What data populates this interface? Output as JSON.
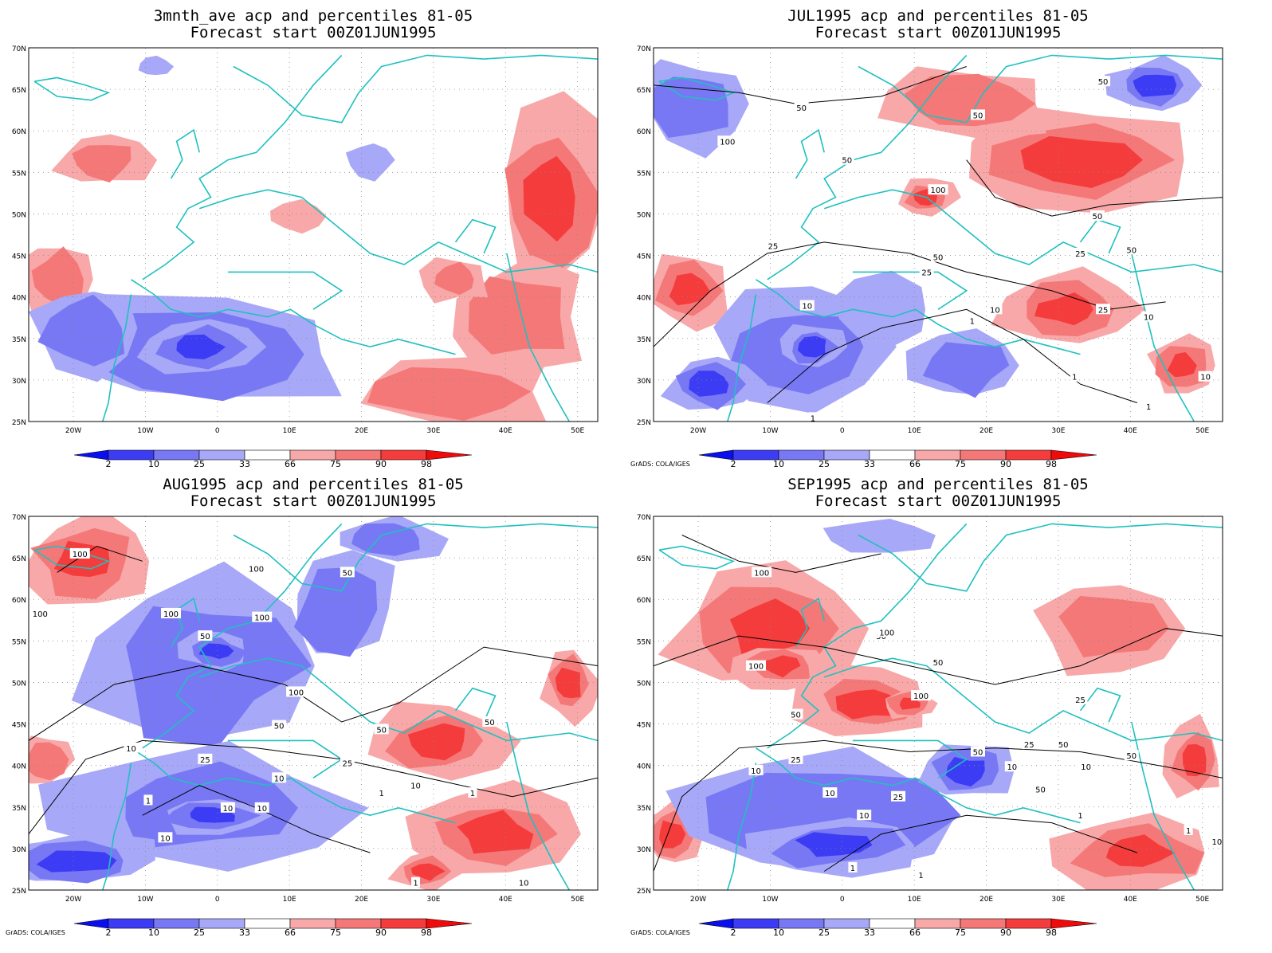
{
  "panels": [
    {
      "title_line1": "3mnth_ave acp and percentiles 81-05",
      "title_line2": "Forecast start 00Z01JUN1995",
      "contour_labels": [],
      "credit": ""
    },
    {
      "title_line1": "JUL1995 acp and percentiles 81-05",
      "title_line2": "Forecast start 00Z01JUN1995",
      "contour_labels": [
        "50",
        "50",
        "50",
        "100",
        "50",
        "100",
        "50",
        "25",
        "50",
        "25",
        "10",
        "10",
        "25",
        "50",
        "25",
        "1",
        "10",
        "1",
        "1",
        "10",
        "1"
      ],
      "credit": "GrADS: COLA/IGES"
    },
    {
      "title_line1": "AUG1995 acp and percentiles 81-05",
      "title_line2": "Forecast start 00Z01JUN1995",
      "contour_labels": [
        "100",
        "100",
        "100",
        "100",
        "50",
        "100",
        "50",
        "100",
        "50",
        "50",
        "50",
        "10",
        "25",
        "25",
        "10",
        "10",
        "1",
        "10",
        "10",
        "10",
        "1",
        "1",
        "1",
        "10"
      ],
      "credit": "GrADS: COLA/IGES"
    },
    {
      "title_line1": "SEP1995 acp and percentiles 81-05",
      "title_line2": "Forecast start 00Z01JUN1995",
      "contour_labels": [
        "100",
        "50",
        "100",
        "100",
        "50",
        "100",
        "50",
        "50",
        "25",
        "25",
        "50",
        "50",
        "50",
        "10",
        "25",
        "10",
        "10",
        "10",
        "10",
        "25",
        "1",
        "1",
        "1",
        "1",
        "10"
      ],
      "credit": "GrADS: COLA/IGES"
    }
  ],
  "map": {
    "lat_labels": [
      "70N",
      "65N",
      "60N",
      "55N",
      "50N",
      "45N",
      "40N",
      "35N",
      "30N",
      "25N"
    ],
    "lon_labels": [
      "20W",
      "10W",
      "0",
      "10E",
      "20E",
      "30E",
      "40E",
      "50E"
    ]
  },
  "colorbar": {
    "labels": [
      "2",
      "10",
      "25",
      "33",
      "66",
      "75",
      "90",
      "98"
    ],
    "colors": [
      "#0a0ff0",
      "#3c3cf5",
      "#7878f5",
      "#a8a8f8",
      "#ffffff",
      "#f8a8a8",
      "#f57878",
      "#f53c3c",
      "#f00a0a"
    ]
  },
  "colors": {
    "coast": "#20c0c0",
    "contour": "#000000",
    "grid": "#888888"
  }
}
